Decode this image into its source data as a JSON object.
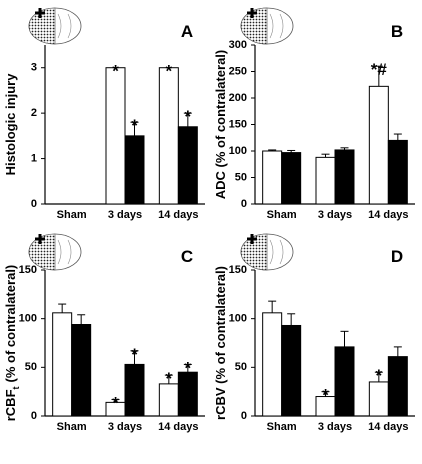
{
  "chart_data": [
    {
      "type": "bar",
      "letter": "A",
      "ylabel": {
        "text": "Histologic injury"
      },
      "categories": [
        "Sham",
        "3 days",
        "14 days"
      ],
      "series": [
        {
          "color": "#ffffff",
          "values": [
            0,
            3,
            3
          ],
          "errors": [
            null,
            null,
            null
          ],
          "marks": [
            null,
            "*",
            "*"
          ]
        },
        {
          "color": "#000000",
          "values": [
            0,
            1.5,
            1.7
          ],
          "errors": [
            null,
            0.3,
            0.3
          ],
          "marks": [
            null,
            "*",
            "*"
          ]
        }
      ],
      "ylim": [
        0,
        3.5
      ],
      "yticks": [
        0,
        1,
        2,
        3
      ]
    },
    {
      "type": "bar",
      "letter": "B",
      "ylabel": {
        "text": "ADC (% of contralateral)"
      },
      "categories": [
        "Sham",
        "3 days",
        "14 days"
      ],
      "series": [
        {
          "color": "#ffffff",
          "values": [
            100,
            88,
            222
          ],
          "errors": [
            2,
            6,
            38
          ],
          "marks": [
            null,
            null,
            "*#"
          ]
        },
        {
          "color": "#000000",
          "values": [
            97,
            102,
            120
          ],
          "errors": [
            4,
            4,
            12
          ],
          "marks": [
            null,
            null,
            null
          ]
        }
      ],
      "ylim": [
        0,
        300
      ],
      "yticks": [
        0,
        50,
        100,
        150,
        200,
        250,
        300
      ]
    },
    {
      "type": "bar",
      "letter": "C",
      "ylabel": {
        "text": "rCBF",
        "sub": "t",
        "rest": "(% of contralateral)"
      },
      "categories": [
        "Sham",
        "3 days",
        "14 days"
      ],
      "series": [
        {
          "color": "#ffffff",
          "values": [
            106,
            14,
            33
          ],
          "errors": [
            9,
            3,
            9
          ],
          "marks": [
            null,
            "*",
            "*"
          ]
        },
        {
          "color": "#000000",
          "values": [
            94,
            53,
            45
          ],
          "errors": [
            10,
            14,
            8
          ],
          "marks": [
            null,
            "*",
            "*"
          ]
        }
      ],
      "ylim": [
        0,
        150
      ],
      "yticks": [
        0,
        50,
        100,
        150
      ]
    },
    {
      "type": "bar",
      "letter": "D",
      "ylabel": {
        "text": "rCBV (% of contralateral)"
      },
      "categories": [
        "Sham",
        "3 days",
        "14 days"
      ],
      "series": [
        {
          "color": "#ffffff",
          "values": [
            106,
            20,
            35
          ],
          "errors": [
            12,
            5,
            10
          ],
          "marks": [
            null,
            "*",
            "*"
          ]
        },
        {
          "color": "#000000",
          "values": [
            93,
            71,
            61
          ],
          "errors": [
            12,
            16,
            10
          ],
          "marks": [
            null,
            null,
            null
          ]
        }
      ],
      "ylim": [
        0,
        150
      ],
      "yticks": [
        0,
        50,
        100,
        150
      ]
    }
  ]
}
